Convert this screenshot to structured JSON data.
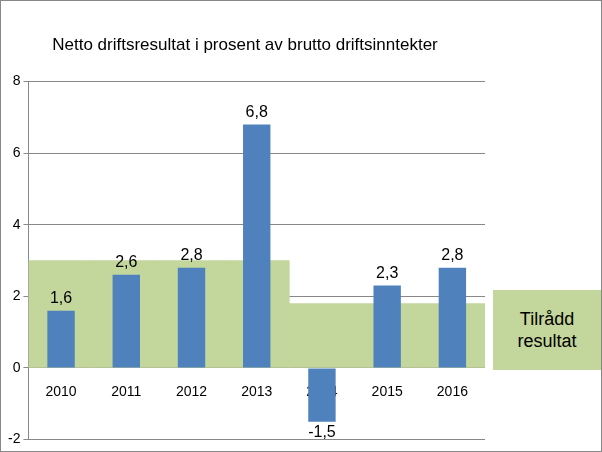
{
  "chart_data": {
    "type": "bar",
    "title": "Netto driftsresultat i prosent av brutto driftsinntekter",
    "categories": [
      "2010",
      "2011",
      "2012",
      "2013",
      "2014",
      "2015",
      "2016"
    ],
    "series": [
      {
        "type": "bar",
        "color": "#4f81bd",
        "values": [
          1.6,
          2.6,
          2.8,
          6.8,
          -1.5,
          2.3,
          2.8
        ],
        "value_labels": [
          "1,6",
          "2,6",
          "2,8",
          "6,8",
          "-1,5",
          "2,3",
          "2,8"
        ],
        "data_labels": true
      },
      {
        "name": "Tilrådd resultat",
        "type": "area",
        "color": "#c3d69b",
        "values": [
          3,
          3,
          3,
          3,
          1.8,
          1.8,
          1.8
        ]
      }
    ],
    "ylim": [
      -2,
      8
    ],
    "yticks": [
      -2,
      0,
      2,
      4,
      6,
      8
    ],
    "grid": true,
    "legend": "right"
  }
}
